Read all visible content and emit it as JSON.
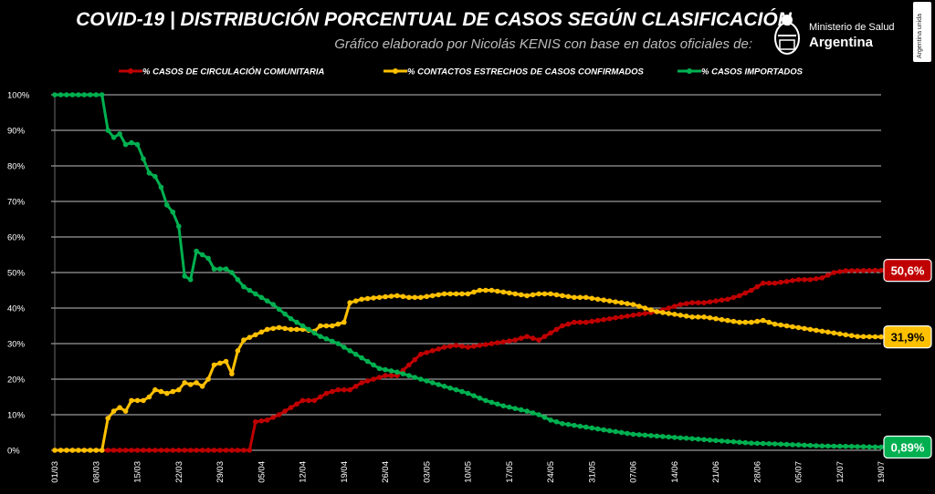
{
  "header": {
    "title": "COVID-19  |  DISTRIBUCIÓN PORCENTUAL DE CASOS SEGÚN CLASIFICACIÓN",
    "subtitle": "Gráfico elaborado por Nicolás KENIS con base en datos oficiales de:",
    "ministry": "Ministerio de Salud",
    "country": "Argentina",
    "side_badge": "Argentina unida"
  },
  "chart_data": {
    "type": "line",
    "x_tick_labels": [
      "01/03",
      "08/03",
      "15/03",
      "22/03",
      "29/03",
      "05/04",
      "12/04",
      "19/04",
      "26/04",
      "03/05",
      "10/05",
      "17/05",
      "24/05",
      "31/05",
      "07/06",
      "14/06",
      "21/06",
      "28/06",
      "05/07",
      "12/07",
      "19/07"
    ],
    "y_tick_labels": [
      "0%",
      "10%",
      "20%",
      "30%",
      "40%",
      "50%",
      "60%",
      "70%",
      "80%",
      "90%",
      "100%"
    ],
    "ylim": [
      0,
      100
    ],
    "legend_position": "top",
    "x_start": "01/03",
    "x_end": "19/07",
    "series": [
      {
        "name": "% CASOS DE CIRCULACIÓN COMUNITARIA",
        "color": "#c00000",
        "end_label": "50,6%",
        "points": [
          [
            0,
            0
          ],
          [
            33,
            0
          ],
          [
            34,
            8
          ],
          [
            36,
            8.5
          ],
          [
            38,
            10
          ],
          [
            40,
            12
          ],
          [
            42,
            14
          ],
          [
            44,
            14
          ],
          [
            46,
            16
          ],
          [
            48,
            17
          ],
          [
            50,
            17
          ],
          [
            52,
            19
          ],
          [
            54,
            20
          ],
          [
            56,
            21
          ],
          [
            58,
            21
          ],
          [
            60,
            24
          ],
          [
            62,
            27
          ],
          [
            64,
            28
          ],
          [
            66,
            29
          ],
          [
            68,
            29.5
          ],
          [
            70,
            29
          ],
          [
            72,
            29.5
          ],
          [
            74,
            30
          ],
          [
            76,
            30.5
          ],
          [
            78,
            31
          ],
          [
            80,
            32
          ],
          [
            82,
            31
          ],
          [
            84,
            33
          ],
          [
            86,
            35
          ],
          [
            88,
            36
          ],
          [
            90,
            36
          ],
          [
            92,
            36.5
          ],
          [
            94,
            37
          ],
          [
            96,
            37.5
          ],
          [
            98,
            38
          ],
          [
            100,
            38.5
          ],
          [
            102,
            39
          ],
          [
            104,
            40
          ],
          [
            106,
            41
          ],
          [
            108,
            41.5
          ],
          [
            110,
            41.5
          ],
          [
            112,
            42
          ],
          [
            114,
            42.5
          ],
          [
            116,
            43.5
          ],
          [
            118,
            45
          ],
          [
            120,
            47
          ],
          [
            122,
            47
          ],
          [
            124,
            47.5
          ],
          [
            126,
            48
          ],
          [
            128,
            48
          ],
          [
            130,
            48.5
          ],
          [
            132,
            50
          ],
          [
            134,
            50.5
          ],
          [
            140,
            50.6
          ]
        ]
      },
      {
        "name": "% CONTACTOS ESTRECHOS DE CASOS CONFIRMADOS",
        "color": "#ffc000",
        "end_label": "31,9%",
        "points": [
          [
            0,
            0
          ],
          [
            8,
            0
          ],
          [
            9,
            9
          ],
          [
            10,
            11
          ],
          [
            11,
            12
          ],
          [
            12,
            11
          ],
          [
            13,
            14
          ],
          [
            15,
            14
          ],
          [
            16,
            15
          ],
          [
            17,
            17
          ],
          [
            19,
            16
          ],
          [
            21,
            17
          ],
          [
            22,
            19
          ],
          [
            23,
            18.5
          ],
          [
            24,
            19
          ],
          [
            25,
            18
          ],
          [
            26,
            20
          ],
          [
            27,
            24
          ],
          [
            28,
            24.5
          ],
          [
            29,
            25
          ],
          [
            30,
            21.5
          ],
          [
            31,
            28
          ],
          [
            32,
            31
          ],
          [
            34,
            32.5
          ],
          [
            36,
            34
          ],
          [
            38,
            34.5
          ],
          [
            40,
            34
          ],
          [
            42,
            34
          ],
          [
            44,
            33.5
          ],
          [
            45,
            35
          ],
          [
            47,
            35
          ],
          [
            49,
            36
          ],
          [
            50,
            41.5
          ],
          [
            52,
            42.5
          ],
          [
            55,
            43
          ],
          [
            58,
            43.5
          ],
          [
            60,
            43
          ],
          [
            62,
            43
          ],
          [
            64,
            43.5
          ],
          [
            66,
            44
          ],
          [
            68,
            44
          ],
          [
            70,
            44
          ],
          [
            72,
            45
          ],
          [
            74,
            45
          ],
          [
            76,
            44.5
          ],
          [
            78,
            44
          ],
          [
            80,
            43.5
          ],
          [
            82,
            44
          ],
          [
            84,
            44
          ],
          [
            86,
            43.5
          ],
          [
            88,
            43
          ],
          [
            90,
            43
          ],
          [
            92,
            42.5
          ],
          [
            94,
            42
          ],
          [
            96,
            41.5
          ],
          [
            98,
            41
          ],
          [
            100,
            40
          ],
          [
            102,
            39
          ],
          [
            104,
            38.5
          ],
          [
            106,
            38
          ],
          [
            108,
            37.5
          ],
          [
            110,
            37.5
          ],
          [
            112,
            37
          ],
          [
            114,
            36.5
          ],
          [
            116,
            36
          ],
          [
            118,
            36
          ],
          [
            120,
            36.5
          ],
          [
            122,
            35.5
          ],
          [
            124,
            35
          ],
          [
            126,
            34.5
          ],
          [
            128,
            34
          ],
          [
            130,
            33.5
          ],
          [
            132,
            33
          ],
          [
            134,
            32.5
          ],
          [
            136,
            32
          ],
          [
            140,
            31.9
          ]
        ]
      },
      {
        "name": "% CASOS IMPORTADOS",
        "color": "#00b050",
        "end_label": "0,89%",
        "points": [
          [
            0,
            100
          ],
          [
            8,
            100
          ],
          [
            9,
            90
          ],
          [
            10,
            88
          ],
          [
            11,
            89
          ],
          [
            12,
            86
          ],
          [
            13,
            86.5
          ],
          [
            14,
            86
          ],
          [
            15,
            82
          ],
          [
            16,
            78
          ],
          [
            17,
            77
          ],
          [
            18,
            74
          ],
          [
            19,
            69
          ],
          [
            20,
            67
          ],
          [
            21,
            63
          ],
          [
            22,
            49
          ],
          [
            23,
            48
          ],
          [
            24,
            56
          ],
          [
            25,
            55
          ],
          [
            26,
            54
          ],
          [
            27,
            51
          ],
          [
            29,
            51
          ],
          [
            30,
            50
          ],
          [
            31,
            48
          ],
          [
            32,
            46
          ],
          [
            33,
            45
          ],
          [
            35,
            43
          ],
          [
            37,
            41
          ],
          [
            40,
            37
          ],
          [
            43,
            34
          ],
          [
            45,
            32
          ],
          [
            48,
            30
          ],
          [
            50,
            28
          ],
          [
            52,
            26
          ],
          [
            55,
            23
          ],
          [
            58,
            22
          ],
          [
            62,
            20
          ],
          [
            66,
            18
          ],
          [
            70,
            16
          ],
          [
            73,
            14
          ],
          [
            76,
            12.5
          ],
          [
            80,
            11
          ],
          [
            82,
            10
          ],
          [
            84,
            8.5
          ],
          [
            86,
            7.5
          ],
          [
            90,
            6.5
          ],
          [
            94,
            5.5
          ],
          [
            98,
            4.5
          ],
          [
            102,
            4
          ],
          [
            106,
            3.5
          ],
          [
            110,
            3
          ],
          [
            114,
            2.5
          ],
          [
            118,
            2
          ],
          [
            122,
            1.8
          ],
          [
            126,
            1.5
          ],
          [
            130,
            1.2
          ],
          [
            134,
            1.1
          ],
          [
            140,
            0.89
          ]
        ]
      }
    ]
  }
}
